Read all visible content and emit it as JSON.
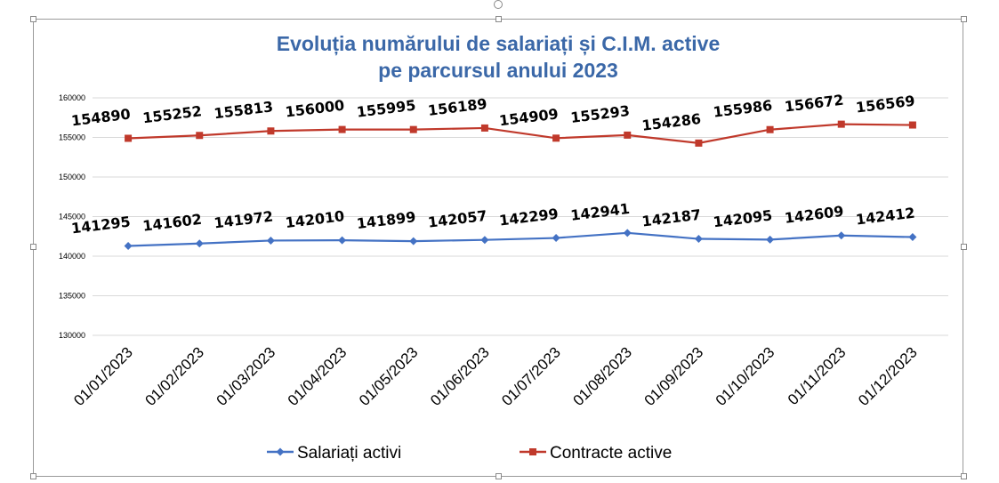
{
  "chart_data": {
    "type": "line",
    "title_lines": [
      "Evoluția numărului de salariați și C.I.M. active",
      "pe parcursul anului 2023"
    ],
    "categories": [
      "01/01/2023",
      "01/02/2023",
      "01/03/2023",
      "01/04/2023",
      "01/05/2023",
      "01/06/2023",
      "01/07/2023",
      "01/08/2023",
      "01/09/2023",
      "01/10/2023",
      "01/11/2023",
      "01/12/2023"
    ],
    "ylim": [
      130000,
      160000
    ],
    "yticks": [
      130000,
      135000,
      140000,
      145000,
      150000,
      155000,
      160000
    ],
    "grid": true,
    "legend_position": "bottom",
    "series": [
      {
        "name": "Salariați activi",
        "marker": "diamond",
        "color": "#4472c4",
        "values": [
          141295,
          141602,
          141972,
          142010,
          141899,
          142057,
          142299,
          142941,
          142187,
          142095,
          142609,
          142412
        ]
      },
      {
        "name": "Contracte active",
        "marker": "square",
        "color": "#c0392b",
        "values": [
          154890,
          155252,
          155813,
          156000,
          155995,
          156189,
          154909,
          155293,
          154286,
          155986,
          156672,
          156569
        ]
      }
    ]
  }
}
